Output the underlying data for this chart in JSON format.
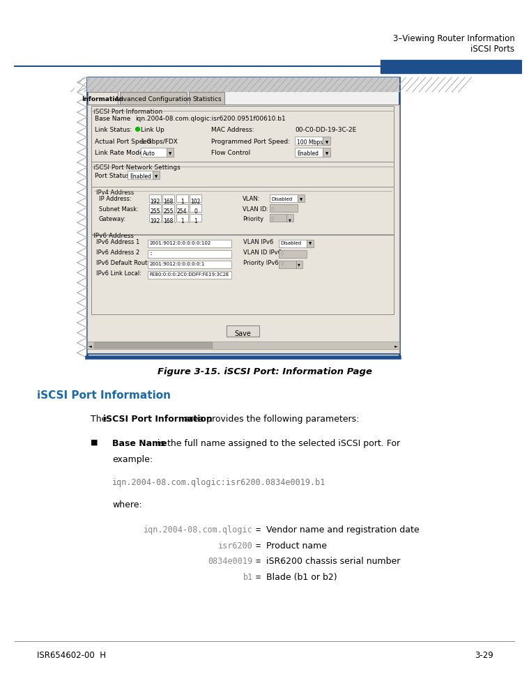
{
  "page_width": 9.54,
  "page_height": 12.35,
  "bg_color": "#ffffff",
  "header_line_color": "#1f4e8c",
  "header_text_right_line1": "3–Viewing Router Information",
  "header_text_right_line2": "iSCSI Ports",
  "header_accent_color": "#1f4e8c",
  "figure_caption": "Figure 3-15. iSCSI Port: Information Page",
  "section_heading": "iSCSI Port Information",
  "section_heading_color": "#1a6aaa",
  "where_text": "where:",
  "code_example": "iqn.2004-08.com.qlogic:isr6200.0834e0019.b1",
  "table_rows": [
    {
      "code": "iqn.2004-08.com.qlogic",
      "eq": "=",
      "desc": "Vendor name and registration date"
    },
    {
      "code": "isr6200",
      "eq": "=",
      "desc": "Product name"
    },
    {
      "code": "0834e0019",
      "eq": "=",
      "desc": "iSR6200 chassis serial number"
    },
    {
      "code": "b1",
      "eq": "=",
      "desc": "Blade (b1 or b2)"
    }
  ],
  "footer_left": "ISR654602-00  H",
  "footer_right": "3-29",
  "screenshot": {
    "tabs": [
      "Information",
      "Advanced Configuration",
      "Statistics"
    ],
    "active_tab": 0,
    "section1_title": "iSCSI Port Information",
    "base_name_label": "Base Name",
    "base_name_value": "iqn.2004-08.com.qlogic:isr6200.0951f00610.b1",
    "link_status_label": "Link Status:",
    "link_status_value": "Link Up",
    "mac_address_label": "MAC Address:",
    "mac_address_value": "00-C0-DD-19-3C-2E",
    "actual_port_speed_label": "Actual Port Speed:",
    "actual_port_speed_value": "1 Gbps/FDX",
    "programmed_port_speed_label": "Programmed Port Speed:",
    "programmed_port_speed_value": "100 Mbps",
    "link_rate_mode_label": "Link Rate Mode",
    "link_rate_mode_value": "Auto",
    "flow_control_label": "Flow Control",
    "flow_control_value": "Enabled",
    "section2_title": "iSCSI Port Network Settings",
    "port_status_label": "Port Status:",
    "port_status_value": "Enabled",
    "ipv4_section": "IPv4 Address",
    "ip_address_label": "IP Address:",
    "ip_address_value": [
      "192",
      "168",
      "1",
      "102"
    ],
    "vlan_label": "VLAN:",
    "vlan_value": "Disabled",
    "subnet_mask_label": "Subnet Mask:",
    "subnet_mask_value": [
      "255",
      "255",
      "254",
      "0"
    ],
    "vlan_id_label": "VLAN ID:",
    "vlan_id_value": "0",
    "gateway_label": "Gateway:",
    "gateway_value": [
      "192",
      "168",
      "1",
      "1"
    ],
    "priority_label": "Priority",
    "priority_value": "0",
    "ipv6_section": "IPv6 Address",
    "ipv6_addr1_label": "IPv6 Address 1",
    "ipv6_addr1_value": "2001:9012:0:0:0:0:0:102",
    "vlan_ipv6_label": "VLAN IPv6",
    "vlan_ipv6_value": "Disabled",
    "ipv6_addr2_label": "IPv6 Address 2",
    "ipv6_addr2_value": "::",
    "vlan_id_ipv6_label": "VLAN ID IPv6",
    "vlan_id_ipv6_value": "0",
    "ipv6_default_router_label": "IPv6 Default Router:",
    "ipv6_default_router_value": "2001:9012:0:0:0:0:0:1",
    "priority_ipv6_label": "Priority IPv6",
    "priority_ipv6_value": "0",
    "ipv6_link_local_label": "IPv6 Link Local:",
    "ipv6_link_local_value": "FE80:0:0:0:2C0:DDFF:FE19:3C2E",
    "save_button": "Save"
  }
}
